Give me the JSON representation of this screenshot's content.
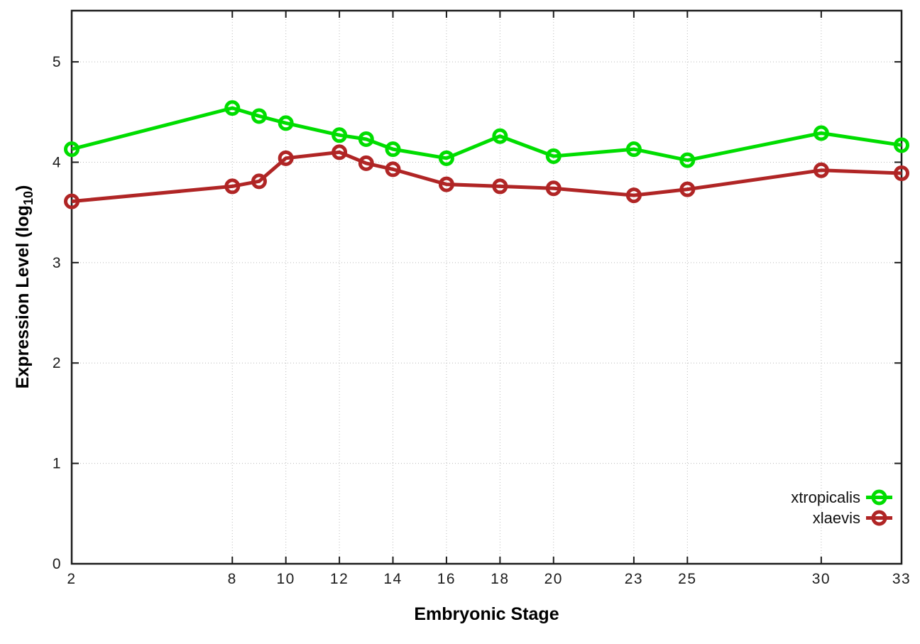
{
  "figure": {
    "background": "#ffffff",
    "xlabel": "Embryonic Stage",
    "ylabel_prefix": "Expression Level (log",
    "ylabel_subscript": "10",
    "ylabel_suffix": ")"
  },
  "chart_data": {
    "type": "line",
    "title": "",
    "xlabel": "Embryonic Stage",
    "ylabel": "Expression Level (log10)",
    "x": [
      2,
      8,
      9,
      10,
      12,
      13,
      14,
      16,
      18,
      20,
      23,
      25,
      30,
      33
    ],
    "xticks": [
      2,
      8,
      10,
      12,
      14,
      16,
      18,
      20,
      23,
      25,
      30,
      33
    ],
    "yticks": [
      0,
      1,
      2,
      3,
      4,
      5
    ],
    "xlim": [
      2,
      33
    ],
    "ylim": [
      0,
      5.51
    ],
    "grid": true,
    "grid_style": "dotted",
    "legend_position": "bottom-right-inside",
    "marker": "open-circle",
    "series": [
      {
        "name": "xtropicalis",
        "color": "#00dd00",
        "values": [
          4.13,
          4.54,
          4.46,
          4.39,
          4.27,
          4.23,
          4.13,
          4.04,
          4.26,
          4.06,
          4.13,
          4.02,
          4.29,
          4.17
        ]
      },
      {
        "name": "xlaevis",
        "color": "#b02525",
        "values": [
          3.61,
          3.76,
          3.81,
          4.04,
          4.1,
          3.99,
          3.93,
          3.78,
          3.76,
          3.74,
          3.67,
          3.73,
          3.92,
          3.89
        ]
      }
    ]
  }
}
